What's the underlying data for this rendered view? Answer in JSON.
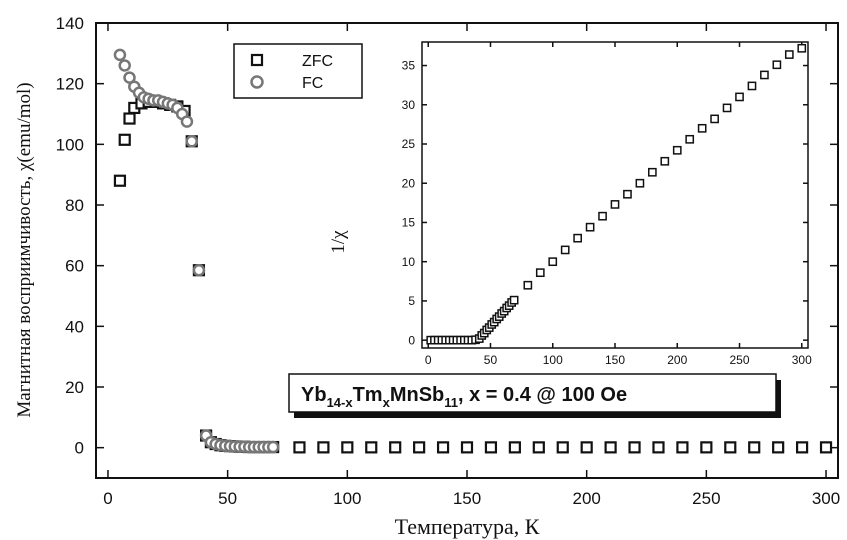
{
  "chart_data": [
    {
      "type": "scatter",
      "xlabel": "Температура, К",
      "ylabel": "Магнитная восприимчивость, χ(emu/mol)",
      "xlim": [
        -5,
        305
      ],
      "ylim": [
        -10,
        140
      ],
      "xticks": [
        0,
        50,
        100,
        150,
        200,
        250,
        300
      ],
      "yticks": [
        0,
        20,
        40,
        60,
        80,
        100,
        120,
        140
      ],
      "legend_position": "top-center",
      "annotation": {
        "base": "Yb",
        "sub1": "14-x",
        "mid": "Tm",
        "sub2": "x",
        "end": "MnSb",
        "sub3": "11",
        "tail": ", x = 0.4 @ 100 Oe"
      },
      "series": [
        {
          "name": "ZFC",
          "marker": "square",
          "x": [
            5,
            7,
            9,
            11,
            14,
            17,
            20,
            23,
            26,
            29,
            32,
            35,
            38,
            41,
            43,
            45,
            47,
            49,
            51,
            53,
            55,
            57,
            59,
            61,
            63,
            65,
            67,
            69,
            80,
            90,
            100,
            110,
            120,
            130,
            140,
            150,
            160,
            170,
            180,
            190,
            200,
            210,
            220,
            230,
            240,
            250,
            260,
            270,
            280,
            290,
            300
          ],
          "y": [
            88,
            101.5,
            108.5,
            112,
            113.5,
            114,
            114,
            113.5,
            113,
            112.5,
            111,
            101,
            58.5,
            4,
            1.8,
            1.2,
            0.8,
            0.6,
            0.5,
            0.4,
            0.3,
            0.3,
            0.2,
            0.2,
            0.2,
            0.2,
            0.2,
            0.2,
            0.1,
            0.1,
            0.1,
            0.1,
            0.1,
            0.1,
            0.1,
            0.1,
            0.1,
            0.1,
            0.1,
            0.1,
            0.1,
            0.1,
            0.1,
            0.1,
            0.1,
            0.1,
            0.1,
            0.1,
            0.1,
            0.1,
            0.1
          ]
        },
        {
          "name": "FC",
          "marker": "circle",
          "x": [
            5,
            7,
            9,
            11,
            13,
            15,
            17,
            19,
            21,
            23,
            25,
            27,
            29,
            31,
            33,
            35,
            38,
            41,
            43,
            45,
            47,
            49,
            51,
            53,
            55,
            57,
            59,
            61,
            63,
            65,
            67,
            69
          ],
          "y": [
            129.5,
            126,
            122,
            119,
            117,
            115.5,
            115,
            114.5,
            114.5,
            114,
            113.5,
            113,
            112,
            110,
            107.5,
            101,
            58.5,
            4,
            1.8,
            1.2,
            0.8,
            0.6,
            0.5,
            0.4,
            0.3,
            0.3,
            0.2,
            0.2,
            0.2,
            0.2,
            0.2,
            0.2
          ]
        }
      ]
    },
    {
      "type": "scatter",
      "ylabel": "1/χ",
      "xlim": [
        -5,
        305
      ],
      "ylim": [
        -1,
        38
      ],
      "xticks": [
        0,
        50,
        100,
        150,
        200,
        250,
        300
      ],
      "yticks": [
        0,
        5,
        10,
        15,
        20,
        25,
        30,
        35
      ],
      "series": [
        {
          "marker": "square",
          "x": [
            2,
            5,
            8,
            11,
            14,
            17,
            20,
            23,
            26,
            29,
            32,
            35,
            38,
            41,
            43,
            45,
            47,
            49,
            51,
            53,
            55,
            57,
            59,
            61,
            63,
            65,
            67,
            69,
            80,
            90,
            100,
            110,
            120,
            130,
            140,
            150,
            160,
            170,
            180,
            190,
            200,
            210,
            220,
            230,
            240,
            250,
            260,
            270,
            280,
            290,
            300
          ],
          "y": [
            0,
            0,
            0,
            0,
            0,
            0,
            0,
            0,
            0,
            0,
            0,
            0,
            0.05,
            0.2,
            0.6,
            0.9,
            1.3,
            1.6,
            2,
            2.3,
            2.7,
            3,
            3.4,
            3.7,
            4.1,
            4.4,
            4.8,
            5.1,
            7,
            8.6,
            10,
            11.5,
            13,
            14.4,
            15.8,
            17.3,
            18.6,
            20,
            21.4,
            22.8,
            24.2,
            25.6,
            27,
            28.2,
            29.6,
            31,
            32.4,
            33.8,
            35.1,
            36.4,
            37.2
          ]
        }
      ]
    }
  ]
}
